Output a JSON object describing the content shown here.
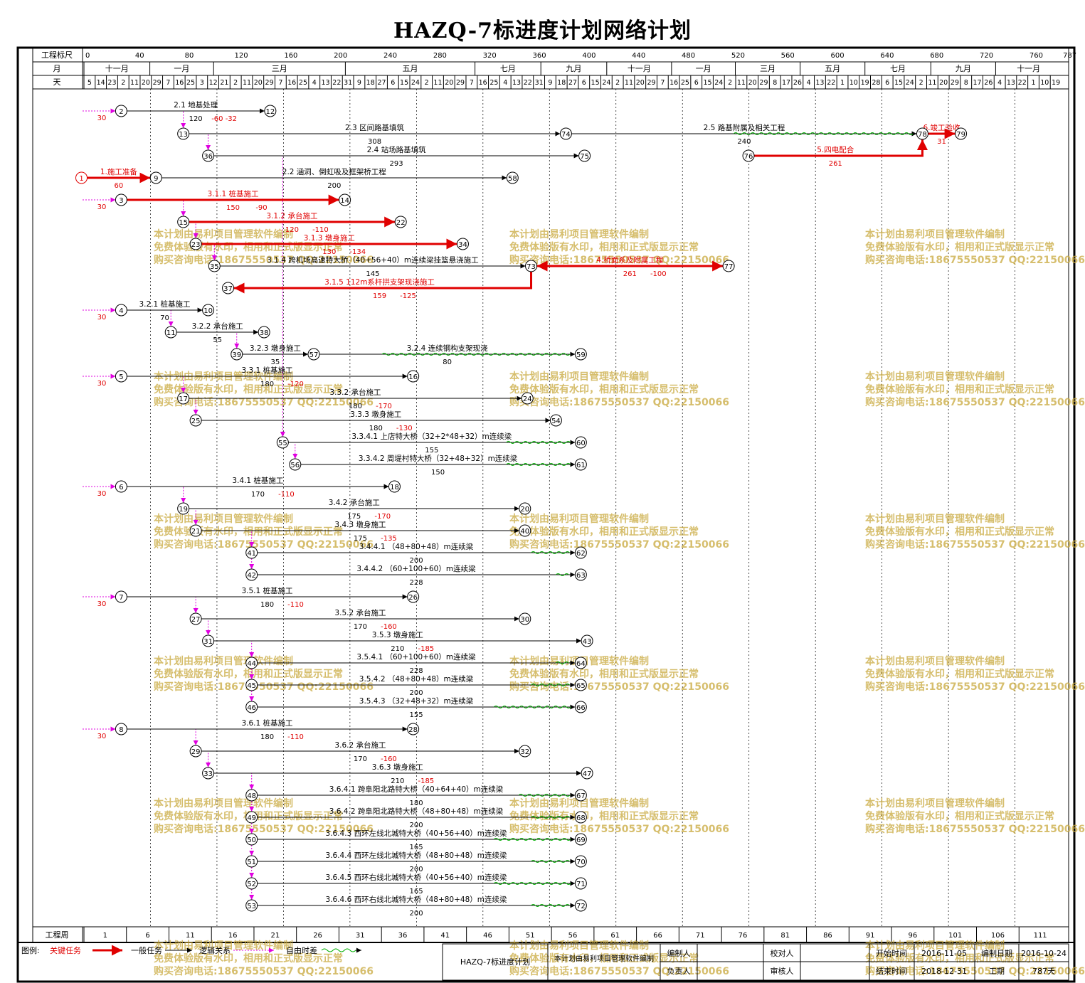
{
  "title": "HAZQ-7标进度计划网络计划",
  "labels": {
    "scale": "工程标尺",
    "month": "月",
    "day": "天",
    "week": "工程周"
  },
  "scale_ticks": [
    "0",
    "40",
    "80",
    "120",
    "160",
    "200",
    "240",
    "280",
    "320",
    "360",
    "400",
    "440",
    "480",
    "520",
    "560",
    "600",
    "640",
    "680",
    "720",
    "760",
    "787"
  ],
  "months": [
    {
      "label": "十一月",
      "start": 0,
      "end": 62
    },
    {
      "label": "一月",
      "start": 62,
      "end": 122
    },
    {
      "label": "三月",
      "start": 122,
      "end": 246
    },
    {
      "label": "五月",
      "start": 246,
      "end": 368
    },
    {
      "label": "七月",
      "start": 368,
      "end": 430
    },
    {
      "label": "九月",
      "start": 430,
      "end": 492
    },
    {
      "label": "十一月",
      "start": 492,
      "end": 553
    },
    {
      "label": "一月",
      "start": 553,
      "end": 613
    },
    {
      "label": "三月",
      "start": 613,
      "end": 674
    },
    {
      "label": "五月",
      "start": 674,
      "end": 735
    },
    {
      "label": "七月",
      "start": 735,
      "end": 797
    },
    {
      "label": "九月",
      "start": 797,
      "end": 858
    },
    {
      "label": "十一月",
      "start": 858,
      "end": 920
    }
  ],
  "days": [
    "5",
    "14",
    "23",
    "2",
    "11",
    "20",
    "29",
    "7",
    "16",
    "25",
    "3",
    "12",
    "21",
    "2",
    "11",
    "20",
    "29",
    "7",
    "16",
    "25",
    "4",
    "13",
    "22",
    "31",
    "9",
    "18",
    "27",
    "6",
    "15",
    "24",
    "2",
    "11",
    "20",
    "29",
    "7",
    "16",
    "25",
    "4",
    "13",
    "22",
    "31",
    "9",
    "18",
    "27",
    "6",
    "15",
    "24",
    "2",
    "11",
    "20",
    "29",
    "7",
    "16",
    "25",
    "6",
    "15",
    "24",
    "2",
    "11",
    "20",
    "29",
    "8",
    "17",
    "26",
    "4",
    "13",
    "22",
    "1",
    "10",
    "19",
    "28",
    "6",
    "15",
    "24",
    "2",
    "11",
    "20",
    "29",
    "8",
    "17",
    "26",
    "4",
    "13",
    "22",
    "1",
    "10",
    "19"
  ],
  "weeks": [
    "1",
    "6",
    "11",
    "16",
    "21",
    "26",
    "31",
    "36",
    "41",
    "46",
    "51",
    "56",
    "61",
    "66",
    "71",
    "76",
    "81",
    "86",
    "91",
    "96",
    "101",
    "106",
    "111"
  ],
  "network": {
    "nodes": [
      {
        "id": "1",
        "day": -2,
        "y": 250,
        "color": "#e00000"
      },
      {
        "id": "2",
        "day": 30,
        "y": 156
      },
      {
        "id": "12",
        "day": 150,
        "y": 156
      },
      {
        "id": "13",
        "day": 80,
        "y": 188
      },
      {
        "id": "74",
        "day": 388,
        "y": 188
      },
      {
        "id": "78",
        "day": 675,
        "y": 188
      },
      {
        "id": "79",
        "day": 706,
        "y": 188
      },
      {
        "id": "36",
        "day": 100,
        "y": 219
      },
      {
        "id": "75",
        "day": 403,
        "y": 219
      },
      {
        "id": "76",
        "day": 535,
        "y": 219
      },
      {
        "id": "9",
        "day": 58,
        "y": 250
      },
      {
        "id": "58",
        "day": 345,
        "y": 250
      },
      {
        "id": "3",
        "day": 30,
        "y": 281
      },
      {
        "id": "14",
        "day": 210,
        "y": 281
      },
      {
        "id": "15",
        "day": 80,
        "y": 312
      },
      {
        "id": "22",
        "day": 255,
        "y": 312
      },
      {
        "id": "23",
        "day": 90,
        "y": 343
      },
      {
        "id": "34",
        "day": 305,
        "y": 343
      },
      {
        "id": "35",
        "day": 105,
        "y": 374
      },
      {
        "id": "73",
        "day": 360,
        "y": 374
      },
      {
        "id": "77",
        "day": 519,
        "y": 374
      },
      {
        "id": "37",
        "day": 116,
        "y": 405
      },
      {
        "id": "4",
        "day": 30,
        "y": 436
      },
      {
        "id": "10",
        "day": 100,
        "y": 436
      },
      {
        "id": "11",
        "day": 70,
        "y": 467
      },
      {
        "id": "38",
        "day": 145,
        "y": 467
      },
      {
        "id": "39",
        "day": 123,
        "y": 498
      },
      {
        "id": "57",
        "day": 185,
        "y": 498
      },
      {
        "id": "59",
        "day": 400,
        "y": 498
      },
      {
        "id": "5",
        "day": 30,
        "y": 529
      },
      {
        "id": "16",
        "day": 265,
        "y": 529
      },
      {
        "id": "17",
        "day": 80,
        "y": 560
      },
      {
        "id": "24",
        "day": 357,
        "y": 560
      },
      {
        "id": "25",
        "day": 90,
        "y": 591
      },
      {
        "id": "54",
        "day": 380,
        "y": 591
      },
      {
        "id": "55",
        "day": 160,
        "y": 622
      },
      {
        "id": "60",
        "day": 400,
        "y": 622
      },
      {
        "id": "56",
        "day": 170,
        "y": 653
      },
      {
        "id": "61",
        "day": 400,
        "y": 653
      },
      {
        "id": "6",
        "day": 30,
        "y": 684
      },
      {
        "id": "18",
        "day": 250,
        "y": 684
      },
      {
        "id": "19",
        "day": 80,
        "y": 715
      },
      {
        "id": "20",
        "day": 355,
        "y": 715
      },
      {
        "id": "21",
        "day": 90,
        "y": 746
      },
      {
        "id": "40",
        "day": 355,
        "y": 746
      },
      {
        "id": "41",
        "day": 135,
        "y": 777
      },
      {
        "id": "62",
        "day": 400,
        "y": 777
      },
      {
        "id": "42",
        "day": 135,
        "y": 808
      },
      {
        "id": "63",
        "day": 400,
        "y": 808
      },
      {
        "id": "7",
        "day": 30,
        "y": 839
      },
      {
        "id": "26",
        "day": 265,
        "y": 839
      },
      {
        "id": "27",
        "day": 90,
        "y": 870
      },
      {
        "id": "30",
        "day": 355,
        "y": 870
      },
      {
        "id": "31",
        "day": 100,
        "y": 901
      },
      {
        "id": "43",
        "day": 405,
        "y": 901
      },
      {
        "id": "44",
        "day": 135,
        "y": 932
      },
      {
        "id": "64",
        "day": 400,
        "y": 932
      },
      {
        "id": "45",
        "day": 135,
        "y": 963
      },
      {
        "id": "65",
        "day": 400,
        "y": 963
      },
      {
        "id": "46",
        "day": 135,
        "y": 994
      },
      {
        "id": "66",
        "day": 400,
        "y": 994
      },
      {
        "id": "8",
        "day": 30,
        "y": 1025
      },
      {
        "id": "28",
        "day": 265,
        "y": 1025
      },
      {
        "id": "29",
        "day": 90,
        "y": 1056
      },
      {
        "id": "32",
        "day": 355,
        "y": 1056
      },
      {
        "id": "33",
        "day": 100,
        "y": 1087
      },
      {
        "id": "47",
        "day": 405,
        "y": 1087
      },
      {
        "id": "48",
        "day": 135,
        "y": 1118
      },
      {
        "id": "67",
        "day": 400,
        "y": 1118
      },
      {
        "id": "49",
        "day": 135,
        "y": 1149
      },
      {
        "id": "68",
        "day": 400,
        "y": 1149
      },
      {
        "id": "50",
        "day": 135,
        "y": 1180
      },
      {
        "id": "69",
        "day": 400,
        "y": 1180
      },
      {
        "id": "51",
        "day": 135,
        "y": 1211
      },
      {
        "id": "70",
        "day": 400,
        "y": 1211
      },
      {
        "id": "52",
        "day": 135,
        "y": 1242
      },
      {
        "id": "71",
        "day": 400,
        "y": 1242
      },
      {
        "id": "53",
        "day": 135,
        "y": 1273
      },
      {
        "id": "72",
        "day": 400,
        "y": 1273
      }
    ],
    "tasks": [
      {
        "from": "2",
        "to": "12",
        "name": "2.1  地基处理",
        "dur": "120",
        "extra": "-60 -32",
        "crit": false
      },
      {
        "from": "13",
        "to": "74",
        "name": "2.3  区间路基填筑",
        "dur": "308",
        "crit": false
      },
      {
        "from": "74",
        "to": "78",
        "name": "2.5  路基附属及相关工程",
        "dur": "240",
        "crit": false,
        "wavy_from": 523
      },
      {
        "from": "36",
        "to": "75",
        "name": "2.4  站场路基填筑",
        "dur": "293",
        "crit": false
      },
      {
        "from": "76",
        "to": "78",
        "name": "5.四电配合",
        "dur": "261",
        "crit": true,
        "elbow": true
      },
      {
        "from": "1",
        "to": "9",
        "name": "1.施工准备",
        "dur": "60",
        "crit": true
      },
      {
        "from": "9",
        "to": "58",
        "name": "2.2  涵洞、倒虹吸及框架桥工程",
        "dur": "200",
        "crit": false
      },
      {
        "from": "78",
        "to": "79",
        "name": "6.竣工验收",
        "dur": "31",
        "crit": true
      },
      {
        "from": "3",
        "to": "14",
        "name": "3.1.1  桩基施工",
        "dur": "150",
        "extra": "-90",
        "crit": true
      },
      {
        "from": "15",
        "to": "22",
        "name": "3.1.2  承台施工",
        "dur": "120",
        "extra": "-110",
        "crit": true
      },
      {
        "from": "23",
        "to": "34",
        "name": "3.1.3  墩身施工",
        "dur": "130",
        "extra": "-134",
        "crit": true
      },
      {
        "from": "35",
        "to": "73",
        "name": "3.1.4  跨机场高速特大桥（40+56+40）m连续梁挂篮悬浇施工",
        "dur": "145",
        "crit": false
      },
      {
        "from": "73",
        "to": "77",
        "name": "4.桥面系及附属工程",
        "dur": "261",
        "extra": "-100",
        "crit": true,
        "bi": true
      },
      {
        "from": "73",
        "to": "37",
        "name": "3.1.5  112m系杆拱支架现浇施工",
        "dur": "159",
        "extra": "-125",
        "crit": true,
        "back": true
      },
      {
        "from": "4",
        "to": "10",
        "name": "3.2.1  桩基施工",
        "dur": "70",
        "crit": false
      },
      {
        "from": "11",
        "to": "38",
        "name": "3.2.2  承台施工",
        "dur": "55",
        "crit": false
      },
      {
        "from": "39",
        "to": "57",
        "name": "3.2.3  墩身施工",
        "dur": "35",
        "crit": false
      },
      {
        "from": "57",
        "to": "59",
        "name": "3.2.4  连续钢构支架现浇",
        "dur": "80",
        "crit": false,
        "wavy_from": 240
      },
      {
        "from": "5",
        "to": "16",
        "name": "3.3.1  桩基施工",
        "dur": "180",
        "extra": "-120",
        "crit": false
      },
      {
        "from": "17",
        "to": "24",
        "name": "3.3.2  承台施工",
        "dur": "180",
        "extra": "-170",
        "crit": false
      },
      {
        "from": "25",
        "to": "54",
        "name": "3.3.3  墩身施工",
        "dur": "180",
        "extra": "-130",
        "crit": false
      },
      {
        "from": "55",
        "to": "60",
        "name": "3.3.4.1  上店特大桥（32+2*48+32）m连续梁",
        "dur": "155",
        "crit": false,
        "wavy_from": 340
      },
      {
        "from": "56",
        "to": "61",
        "name": "3.3.4.2  周堤村特大桥（32+48+32）m连续梁",
        "dur": "150",
        "crit": false,
        "wavy_from": 340
      },
      {
        "from": "6",
        "to": "18",
        "name": "3.4.1  桩基施工",
        "dur": "170",
        "extra": "-110",
        "crit": false
      },
      {
        "from": "19",
        "to": "20",
        "name": "3.4.2  承台施工",
        "dur": "175",
        "extra": "-170",
        "crit": false
      },
      {
        "from": "21",
        "to": "40",
        "name": "3.4.3  墩身施工",
        "dur": "175",
        "extra": "-135",
        "crit": false
      },
      {
        "from": "41",
        "to": "62",
        "name": "3.4.4.1  （48+80+48）m连续梁",
        "dur": "200",
        "crit": false,
        "wavy_from": 360
      },
      {
        "from": "42",
        "to": "63",
        "name": "3.4.4.2  （60+100+60）m连续梁",
        "dur": "228",
        "crit": false,
        "wavy_from": 380
      },
      {
        "from": "7",
        "to": "26",
        "name": "3.5.1  桩基施工",
        "dur": "180",
        "extra": "-110",
        "crit": false
      },
      {
        "from": "27",
        "to": "30",
        "name": "3.5.2  承台施工",
        "dur": "170",
        "extra": "-160",
        "crit": false
      },
      {
        "from": "31",
        "to": "43",
        "name": "3.5.3  墩身施工",
        "dur": "210",
        "extra": "-185",
        "crit": false
      },
      {
        "from": "44",
        "to": "64",
        "name": "3.5.4.1  （60+100+60）m连续梁",
        "dur": "228",
        "crit": false,
        "wavy_from": 380
      },
      {
        "from": "45",
        "to": "65",
        "name": "3.5.4.2  （48+80+48）m连续梁",
        "dur": "200",
        "crit": false,
        "wavy_from": 360
      },
      {
        "from": "46",
        "to": "66",
        "name": "3.5.4.3  （32+48+32）m连续梁",
        "dur": "155",
        "crit": false,
        "wavy_from": 330
      },
      {
        "from": "8",
        "to": "28",
        "name": "3.6.1  桩基施工",
        "dur": "180",
        "extra": "-110",
        "crit": false
      },
      {
        "from": "29",
        "to": "32",
        "name": "3.6.2  承台施工",
        "dur": "170",
        "extra": "-160",
        "crit": false
      },
      {
        "from": "33",
        "to": "47",
        "name": "3.6.3  墩身施工",
        "dur": "210",
        "extra": "-185",
        "crit": false
      },
      {
        "from": "48",
        "to": "67",
        "name": "3.6.4.1  跨阜阳北路特大桥（40+64+40）m连续梁",
        "dur": "180",
        "crit": false,
        "wavy_from": 350
      },
      {
        "from": "49",
        "to": "68",
        "name": "3.6.4.2  跨阜阳北路特大桥（48+80+48）m连续梁",
        "dur": "200",
        "crit": false,
        "wavy_from": 360
      },
      {
        "from": "50",
        "to": "69",
        "name": "3.6.4.3  西环左线北城特大桥（40+56+40）m连续梁",
        "dur": "165",
        "crit": false,
        "wavy_from": 330
      },
      {
        "from": "51",
        "to": "70",
        "name": "3.6.4.4  西环左线北城特大桥（48+80+48）m连续梁",
        "dur": "200",
        "crit": false,
        "wavy_from": 360
      },
      {
        "from": "52",
        "to": "71",
        "name": "3.6.4.5  西环右线北城特大桥（40+56+40）m连续梁",
        "dur": "165",
        "crit": false,
        "wavy_from": 330
      },
      {
        "from": "53",
        "to": "72",
        "name": "3.6.4.6  西环右线北城特大桥（48+80+48）m连续梁",
        "dur": "200",
        "crit": false,
        "wavy_from": 360
      }
    ],
    "start_lags": [
      {
        "to": "2",
        "lag": "30"
      },
      {
        "to": "3",
        "lag": "30"
      },
      {
        "to": "4",
        "lag": "30"
      },
      {
        "to": "5",
        "lag": "30"
      },
      {
        "to": "6",
        "lag": "30"
      },
      {
        "to": "7",
        "lag": "30"
      },
      {
        "to": "8",
        "lag": "30"
      }
    ],
    "dummies": [
      {
        "from": "2",
        "to": "13"
      },
      {
        "from": "13",
        "to": "36"
      },
      {
        "from": "3",
        "to": "15"
      },
      {
        "from": "15",
        "to": "23"
      },
      {
        "from": "23",
        "to": "35"
      },
      {
        "from": "10",
        "to": "11"
      },
      {
        "from": "38",
        "to": "39"
      },
      {
        "from": "17",
        "to": "25"
      },
      {
        "from": "5",
        "to": "17"
      },
      {
        "from": "36",
        "to": "55"
      },
      {
        "from": "55",
        "to": "56"
      },
      {
        "from": "6",
        "to": "19"
      },
      {
        "from": "19",
        "to": "21"
      },
      {
        "from": "21",
        "to": "41"
      },
      {
        "from": "41",
        "to": "42"
      },
      {
        "from": "7",
        "to": "27"
      },
      {
        "from": "27",
        "to": "31"
      },
      {
        "from": "31",
        "to": "44"
      },
      {
        "from": "44",
        "to": "45"
      },
      {
        "from": "45",
        "to": "46"
      },
      {
        "from": "8",
        "to": "29"
      },
      {
        "from": "29",
        "to": "33"
      },
      {
        "from": "33",
        "to": "48"
      },
      {
        "from": "48",
        "to": "49"
      },
      {
        "from": "49",
        "to": "50"
      },
      {
        "from": "50",
        "to": "51"
      },
      {
        "from": "51",
        "to": "52"
      },
      {
        "from": "52",
        "to": "53"
      }
    ]
  },
  "watermark": [
    "本计划由易利项目管理软件编制",
    "免费体验版有水印，相用和正式版显示正常",
    "购买咨询电话:18675550537 QQ:22150066"
  ],
  "legend": {
    "label": "图例:",
    "critical": "关键任务",
    "normal": "一般任务",
    "logic": "逻辑关系",
    "free": "自由时差",
    "project": "HAZQ-7标进度计划",
    "software": "本计划由易利项目管理软件编制",
    "compiler": "编制人",
    "leader": "负责人",
    "checker": "校对人",
    "auditor": "审核人",
    "start_label": "开始时间",
    "start": "2016-11-05",
    "end_label": "结束时间",
    "end": "2018-12-31",
    "date_label": "编制日期",
    "date": "2016-10-24",
    "dur_label": "工期",
    "dur": "787天"
  },
  "colors": {
    "critical": "#e00000",
    "normal": "#000000",
    "dummy": "#e000e0",
    "free": "#00b000",
    "watermark": "#c8a83c"
  }
}
